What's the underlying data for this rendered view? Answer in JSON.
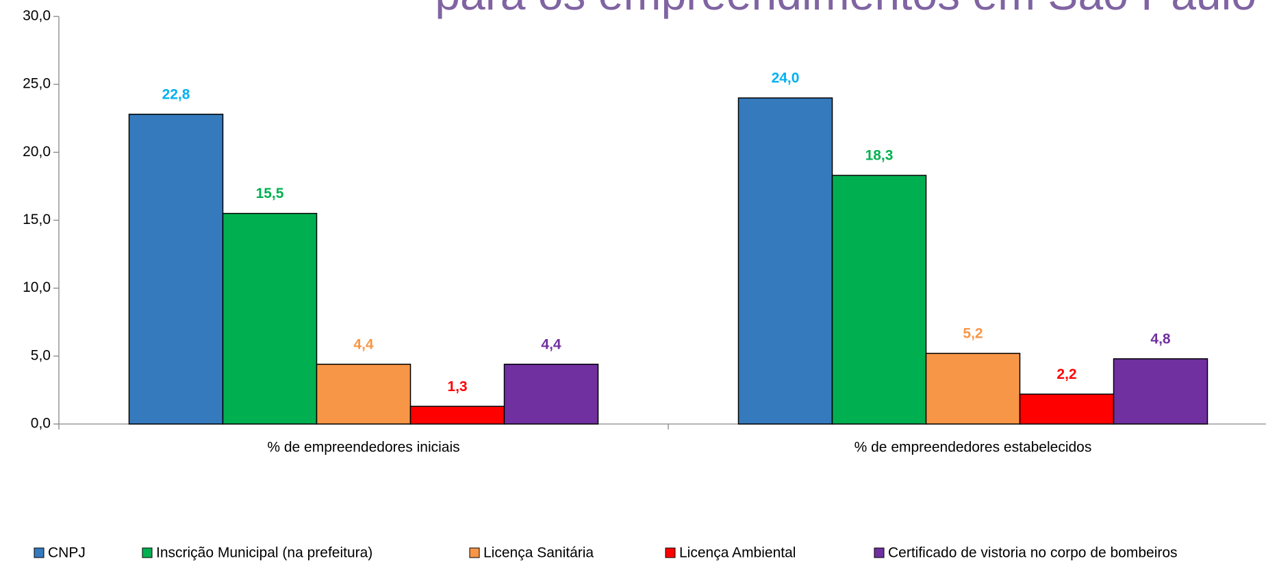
{
  "chart_data": {
    "type": "bar",
    "title": "para os empreendimentos em São Paulo",
    "categories": [
      "% de empreendedores iniciais",
      "% de empreendedores estabelecidos"
    ],
    "series": [
      {
        "name": "CNPJ",
        "color": "#357ABD",
        "label_color": "#00B0F0",
        "values": [
          22.8,
          24.0
        ],
        "value_labels": [
          "22,8",
          "24,0"
        ]
      },
      {
        "name": "Inscrição Municipal (na prefeitura)",
        "color": "#00B050",
        "label_color": "#00B050",
        "values": [
          15.5,
          18.3
        ],
        "value_labels": [
          "15,5",
          "18,3"
        ]
      },
      {
        "name": "Licença Sanitária",
        "color": "#F79646",
        "label_color": "#F79646",
        "values": [
          4.4,
          5.2
        ],
        "value_labels": [
          "4,4",
          "5,2"
        ]
      },
      {
        "name": "Licença Ambiental",
        "color": "#FF0000",
        "label_color": "#FF0000",
        "values": [
          1.3,
          2.2
        ],
        "value_labels": [
          "1,3",
          "2,2"
        ]
      },
      {
        "name": "Certificado de vistoria no corpo de bombeiros",
        "color": "#7030A0",
        "label_color": "#7030A0",
        "values": [
          4.4,
          4.8
        ],
        "value_labels": [
          "4,4",
          "4,8"
        ]
      }
    ],
    "ylim": [
      0,
      30
    ],
    "yticks": [
      {
        "value": 0,
        "label": "0,0"
      },
      {
        "value": 5,
        "label": "5,0"
      },
      {
        "value": 10,
        "label": "10,0"
      },
      {
        "value": 15,
        "label": "15,0"
      },
      {
        "value": 20,
        "label": "20,0"
      },
      {
        "value": 25,
        "label": "25,0"
      },
      {
        "value": 30,
        "label": "30,0"
      }
    ],
    "grid": false,
    "legend": "bottom"
  }
}
